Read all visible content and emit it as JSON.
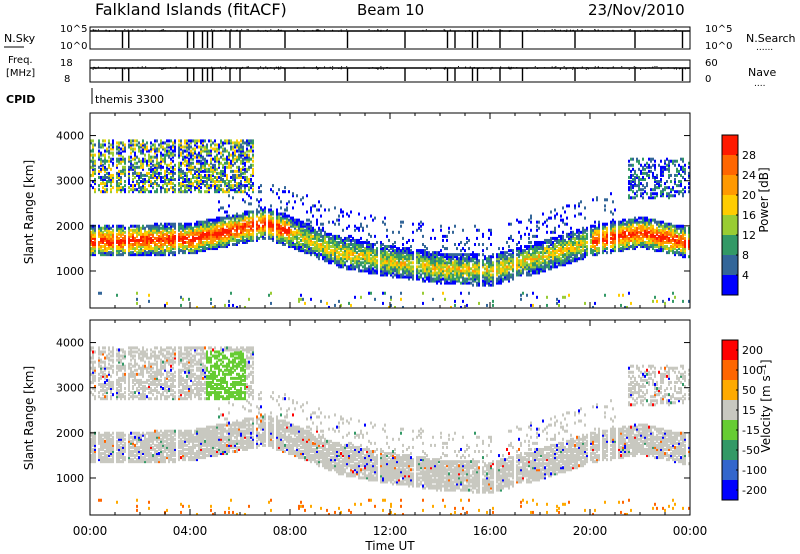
{
  "header": {
    "station": "Falkland Islands (fitACF)",
    "beam": "Beam 10",
    "date": "23/Nov/2010"
  },
  "top_panels": {
    "nsky_label": "N.Sky",
    "nsearch_label": "N.Search",
    "nsearch_dots": "......",
    "noise_ticks_left": [
      "10^5",
      "10^0"
    ],
    "noise_ticks_right": [
      "10^5",
      "10^0"
    ],
    "freq_label_1": "Freq.",
    "freq_label_2": "[MHz]",
    "freq_ticks": [
      "18",
      "8"
    ],
    "nave_label": "Nave",
    "nave_dots": "....",
    "nave_ticks": [
      "60",
      "0"
    ],
    "cpid_label": "CPID",
    "cpid_value": "themis 3300"
  },
  "colorbars": {
    "power": {
      "label": "Power [dB]",
      "ticks": [
        "28",
        "24",
        "20",
        "16",
        "12",
        "8",
        "4"
      ],
      "colors": [
        "#ff1a00",
        "#ff6600",
        "#ff9900",
        "#ffcc00",
        "#99cc33",
        "#339966",
        "#336699",
        "#0000ff"
      ]
    },
    "velocity": {
      "label": "Velocity [m s⁻¹]",
      "ticks": [
        "200",
        "100",
        "50",
        "15",
        "-15",
        "-50",
        "-100",
        "-200"
      ],
      "colors": [
        "#ff0000",
        "#ff6600",
        "#ffaa00",
        "#c8c8c0",
        "#66cc33",
        "#339966",
        "#3366cc",
        "#0000ff"
      ]
    }
  },
  "chart_data": [
    {
      "type": "heatmap",
      "title": "Falkland Islands (fitACF)  Beam 10  23/Nov/2010",
      "ylabel": "Slant Range [km]",
      "xlabel": "Time UT",
      "x_ticks": [
        "00:00",
        "04:00",
        "08:00",
        "12:00",
        "16:00",
        "20:00",
        "00:00"
      ],
      "y_ticks": [
        "1000",
        "2000",
        "3000",
        "4000"
      ],
      "xlim_hours": [
        0,
        24
      ],
      "ylim_km": [
        180,
        4500
      ],
      "parameter": "Power [dB]",
      "main_echo_band_center_km": [
        [
          0,
          1650
        ],
        [
          4,
          1700
        ],
        [
          7,
          2050
        ],
        [
          8,
          1850
        ],
        [
          10,
          1400
        ],
        [
          12,
          1200
        ],
        [
          14,
          1050
        ],
        [
          16,
          1000
        ],
        [
          18,
          1300
        ],
        [
          20,
          1650
        ],
        [
          22,
          1850
        ],
        [
          24,
          1600
        ]
      ],
      "main_echo_band_thickness_km": 550
    },
    {
      "type": "heatmap",
      "ylabel": "Slant Range [km]",
      "xlabel": "Time UT",
      "x_ticks": [
        "00:00",
        "04:00",
        "08:00",
        "12:00",
        "16:00",
        "20:00",
        "00:00"
      ],
      "y_ticks": [
        "1000",
        "2000",
        "3000",
        "4000"
      ],
      "xlim_hours": [
        0,
        24
      ],
      "ylim_km": [
        180,
        4500
      ],
      "parameter": "Velocity [m s⁻¹]",
      "dominant_velocity_bin": "15 to -15"
    }
  ],
  "axes": {
    "x_ticks": [
      "00:00",
      "04:00",
      "08:00",
      "12:00",
      "16:00",
      "20:00",
      "00:00"
    ],
    "xlabel": "Time UT",
    "y_ticks": [
      "1000",
      "2000",
      "3000",
      "4000"
    ],
    "ylabel": "Slant Range [km]"
  }
}
